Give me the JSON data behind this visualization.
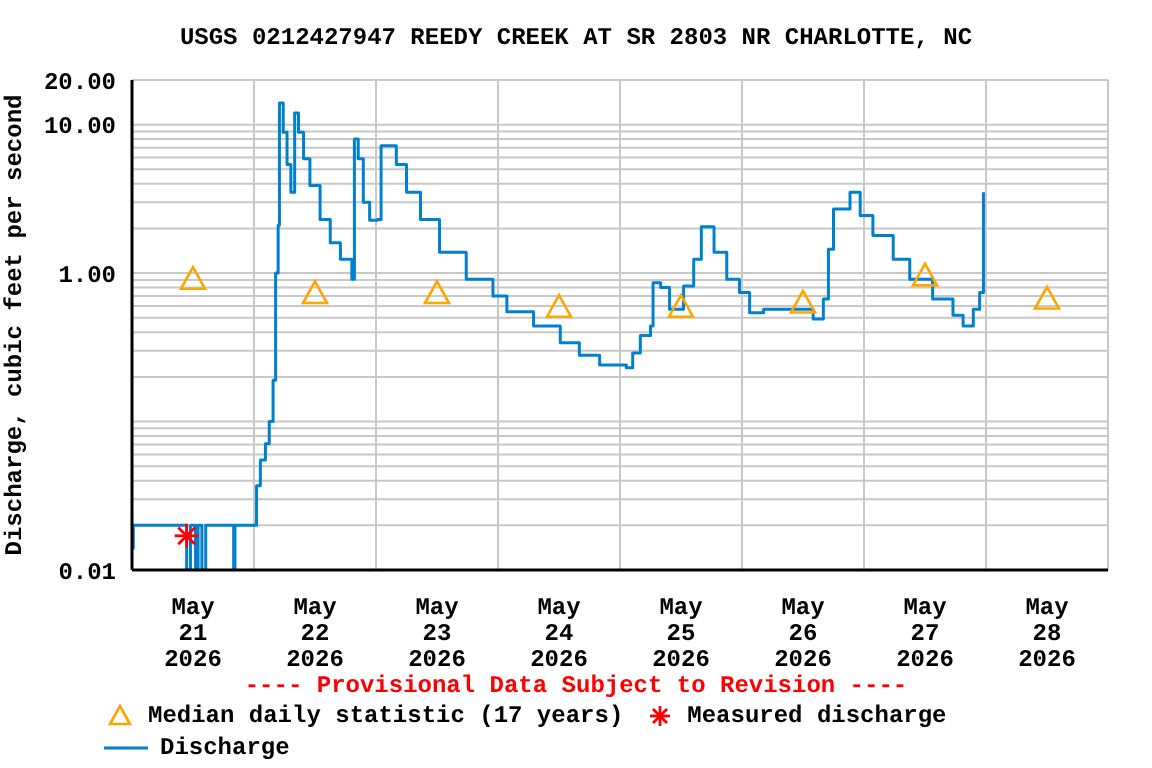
{
  "chart_data": {
    "type": "line",
    "title": "USGS 0212427947 REEDY CREEK AT SR 2803 NR CHARLOTTE, NC",
    "ylabel": "Discharge, cubic feet per second",
    "annotations": [
      "---- Provisional Data Subject to Revision ----"
    ],
    "log": "y",
    "grid": true,
    "legend": "bottom",
    "xlim": [
      "2026-05-21T00:00",
      "2026-05-29T00:00"
    ],
    "xticks": [
      {
        "value": "2026-05-21T00:00",
        "label": null
      },
      {
        "value": "2026-05-21T12:00",
        "label": "May\n21\n2026"
      },
      {
        "value": "2026-05-22T00:00",
        "label": null
      },
      {
        "value": "2026-05-22T12:00",
        "label": "May\n22\n2026"
      },
      {
        "value": "2026-05-23T00:00",
        "label": null
      },
      {
        "value": "2026-05-23T12:00",
        "label": "May\n23\n2026"
      },
      {
        "value": "2026-05-24T00:00",
        "label": null
      },
      {
        "value": "2026-05-24T12:00",
        "label": "May\n24\n2026"
      },
      {
        "value": "2026-05-25T00:00",
        "label": null
      },
      {
        "value": "2026-05-25T12:00",
        "label": "May\n25\n2026"
      },
      {
        "value": "2026-05-26T00:00",
        "label": null
      },
      {
        "value": "2026-05-26T12:00",
        "label": "May\n26\n2026"
      },
      {
        "value": "2026-05-27T00:00",
        "label": null
      },
      {
        "value": "2026-05-27T12:00",
        "label": "May\n27\n2026"
      },
      {
        "value": "2026-05-28T00:00",
        "label": null
      },
      {
        "value": "2026-05-28T12:00",
        "label": "May\n28\n2026"
      },
      {
        "value": "2026-05-29T00:00",
        "label": null
      }
    ],
    "ylim": [
      0.01,
      20
    ],
    "yticks": [
      {
        "value": 0.01,
        "label": "0.01"
      },
      {
        "value": 0.02,
        "label": null
      },
      {
        "value": 0.03,
        "label": null
      },
      {
        "value": 0.04,
        "label": null
      },
      {
        "value": 0.05,
        "label": null
      },
      {
        "value": 0.06,
        "label": null
      },
      {
        "value": 0.07,
        "label": null
      },
      {
        "value": 0.08,
        "label": null
      },
      {
        "value": 0.09,
        "label": null
      },
      {
        "value": 0.1,
        "label": null
      },
      {
        "value": 0.2,
        "label": null
      },
      {
        "value": 0.3,
        "label": null
      },
      {
        "value": 0.4,
        "label": null
      },
      {
        "value": 0.5,
        "label": null
      },
      {
        "value": 0.6,
        "label": null
      },
      {
        "value": 0.7,
        "label": null
      },
      {
        "value": 0.8,
        "label": null
      },
      {
        "value": 0.9,
        "label": null
      },
      {
        "value": 1,
        "label": "1.00"
      },
      {
        "value": 2,
        "label": null
      },
      {
        "value": 3,
        "label": null
      },
      {
        "value": 4,
        "label": null
      },
      {
        "value": 5,
        "label": null
      },
      {
        "value": 6,
        "label": null
      },
      {
        "value": 7,
        "label": null
      },
      {
        "value": 8,
        "label": null
      },
      {
        "value": 9,
        "label": null
      },
      {
        "value": 10,
        "label": "10.00"
      },
      {
        "value": 20,
        "label": "20.00"
      }
    ],
    "series": [
      {
        "name": "Median daily statistic (17 years)",
        "type": "scatter",
        "marker": "triangle",
        "color": "#ffa500",
        "x": [
          "2026-05-21T12:00",
          "2026-05-22T12:00",
          "2026-05-23T12:00",
          "2026-05-24T12:00",
          "2026-05-25T12:00",
          "2026-05-26T12:00",
          "2026-05-27T12:00",
          "2026-05-28T12:00"
        ],
        "values": [
          0.91,
          0.73,
          0.73,
          0.59,
          0.59,
          0.63,
          0.96,
          0.67
        ]
      },
      {
        "name": "Measured discharge",
        "type": "scatter",
        "marker": "cross",
        "color": "#ff0000",
        "x": [
          "2026-05-21T10:45"
        ],
        "values": [
          0.017
        ]
      },
      {
        "name": "Discharge",
        "type": "step",
        "marker": "none",
        "color": "#0080d0",
        "x": [
          "2026-05-21T00:00",
          "2026-05-21T00:15",
          "2026-05-21T10:30",
          "2026-05-21T10:45",
          "2026-05-21T11:30",
          "2026-05-21T12:30",
          "2026-05-21T13:00",
          "2026-05-21T13:45",
          "2026-05-21T14:30",
          "2026-05-21T20:00",
          "2026-05-21T20:15",
          "2026-05-22T00:00",
          "2026-05-22T00:30",
          "2026-05-22T01:15",
          "2026-05-22T02:15",
          "2026-05-22T03:00",
          "2026-05-22T03:45",
          "2026-05-22T04:15",
          "2026-05-22T04:45",
          "2026-05-22T05:00",
          "2026-05-22T05:45",
          "2026-05-22T06:30",
          "2026-05-22T07:15",
          "2026-05-22T08:00",
          "2026-05-22T08:45",
          "2026-05-22T09:45",
          "2026-05-22T11:00",
          "2026-05-22T13:00",
          "2026-05-22T15:00",
          "2026-05-22T17:00",
          "2026-05-22T19:15",
          "2026-05-22T19:45",
          "2026-05-22T20:30",
          "2026-05-22T21:30",
          "2026-05-22T22:45",
          "2026-05-23T00:15",
          "2026-05-23T01:00",
          "2026-05-23T02:00",
          "2026-05-23T04:00",
          "2026-05-23T06:00",
          "2026-05-23T08:45",
          "2026-05-23T12:30",
          "2026-05-23T17:45",
          "2026-05-23T23:00",
          "2026-05-24T01:45",
          "2026-05-24T07:00",
          "2026-05-24T12:15",
          "2026-05-24T16:00",
          "2026-05-24T20:00",
          "2026-05-25T01:15",
          "2026-05-25T02:30",
          "2026-05-25T04:00",
          "2026-05-25T06:00",
          "2026-05-25T06:30",
          "2026-05-25T08:00",
          "2026-05-25T09:45",
          "2026-05-25T12:30",
          "2026-05-25T14:30",
          "2026-05-25T16:00",
          "2026-05-25T18:30",
          "2026-05-25T21:00",
          "2026-05-25T23:30",
          "2026-05-26T01:30",
          "2026-05-26T04:15",
          "2026-05-26T09:30",
          "2026-05-26T14:00",
          "2026-05-26T16:00",
          "2026-05-26T17:00",
          "2026-05-26T18:00",
          "2026-05-26T21:15",
          "2026-05-26T23:15",
          "2026-05-27T01:45",
          "2026-05-27T05:45",
          "2026-05-27T09:00",
          "2026-05-27T13:30",
          "2026-05-27T17:30",
          "2026-05-27T19:30",
          "2026-05-27T21:30",
          "2026-05-27T22:45",
          "2026-05-27T23:30"
        ],
        "values": [
          0.014,
          0.02,
          0.02,
          0.01,
          0.02,
          0.01,
          0.02,
          0.01,
          0.02,
          0.01,
          0.02,
          0.02,
          0.037,
          0.055,
          0.071,
          0.1,
          0.19,
          1.0,
          2.1,
          14,
          8.9,
          5.4,
          3.5,
          12,
          8.9,
          5.9,
          3.9,
          2.3,
          1.6,
          1.24,
          0.91,
          8.0,
          5.9,
          3.0,
          2.27,
          2.3,
          7.2,
          7.2,
          5.4,
          3.5,
          2.3,
          1.38,
          0.91,
          0.7,
          0.55,
          0.44,
          0.34,
          0.28,
          0.24,
          0.23,
          0.29,
          0.38,
          0.44,
          0.86,
          0.8,
          0.57,
          0.82,
          1.24,
          2.05,
          1.38,
          0.91,
          0.74,
          0.54,
          0.57,
          0.57,
          0.49,
          0.67,
          1.45,
          2.7,
          3.5,
          2.44,
          1.79,
          1.24,
          0.91,
          0.67,
          0.52,
          0.44,
          0.57,
          0.74,
          3.5
        ]
      }
    ]
  }
}
